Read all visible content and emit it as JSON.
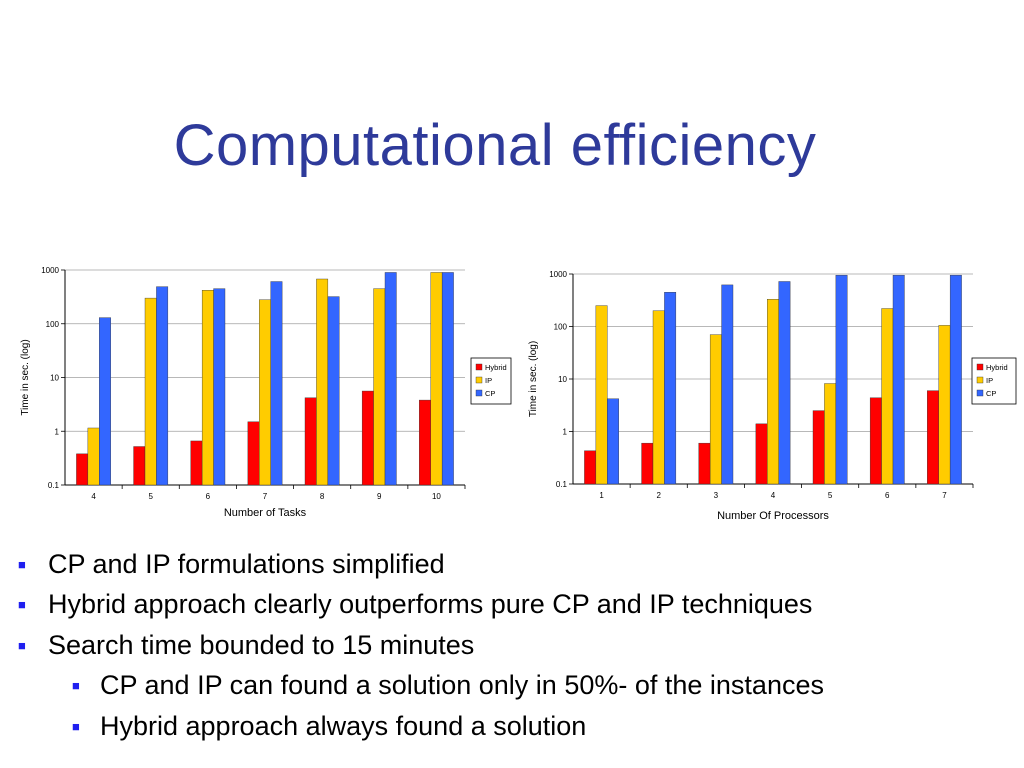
{
  "slide": {
    "title": "Computational efficiency",
    "bullet_color": "#1f1ff0",
    "bullet_symbol": "■",
    "bullets": [
      {
        "text": "CP and IP formulations simplified",
        "level": 1
      },
      {
        "text": "Hybrid approach clearly outperforms pure CP and IP techniques",
        "level": 1
      },
      {
        "text": "Search time bounded to 15 minutes",
        "level": 1
      },
      {
        "text": "CP and IP can found a solution only in 50%- of the instances",
        "level": 2
      },
      {
        "text": "Hybrid approach always found a solution",
        "level": 2
      }
    ]
  },
  "chart_data": [
    {
      "type": "bar",
      "scale": "log",
      "ylim": [
        0.1,
        1000
      ],
      "yticks": [
        "0.1",
        "1",
        "10",
        "100",
        "1000"
      ],
      "xlabel": "Number of Tasks",
      "ylabel": "Time in sec. (log)",
      "legend_placement": "right",
      "categories": [
        "4",
        "5",
        "6",
        "7",
        "8",
        "9",
        "10"
      ],
      "series": [
        {
          "name": "Hybrid",
          "color": "#ff0000",
          "values": [
            0.38,
            0.52,
            0.66,
            1.5,
            4.2,
            5.6,
            3.8
          ]
        },
        {
          "name": "IP",
          "color": "#ffcc00",
          "values": [
            1.15,
            300,
            420,
            280,
            680,
            450,
            900
          ]
        },
        {
          "name": "CP",
          "color": "#3366ff",
          "values": [
            130,
            490,
            450,
            610,
            320,
            900,
            900
          ]
        }
      ]
    },
    {
      "type": "bar",
      "scale": "log",
      "ylim": [
        0.1,
        1000
      ],
      "yticks": [
        "0.1",
        "1",
        "10",
        "100",
        "1000"
      ],
      "xlabel": "Number Of Processors",
      "ylabel": "Time in sec. (log)",
      "legend_placement": "right",
      "categories": [
        "1",
        "2",
        "3",
        "4",
        "5",
        "6",
        "7"
      ],
      "series": [
        {
          "name": "Hybrid",
          "color": "#ff0000",
          "values": [
            0.43,
            0.6,
            0.6,
            1.4,
            2.5,
            4.4,
            6.0
          ]
        },
        {
          "name": "IP",
          "color": "#ffcc00",
          "values": [
            250,
            200,
            70,
            330,
            8.2,
            220,
            105
          ]
        },
        {
          "name": "CP",
          "color": "#3366ff",
          "values": [
            4.2,
            450,
            620,
            720,
            950,
            950,
            950
          ]
        }
      ]
    }
  ]
}
